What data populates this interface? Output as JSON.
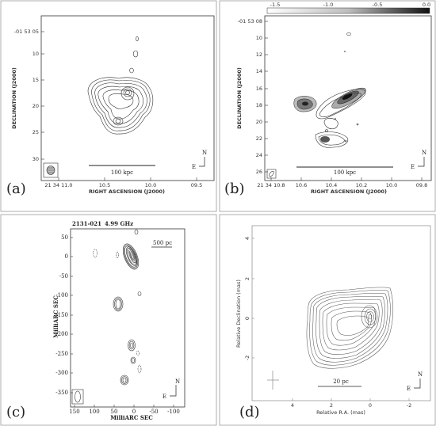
{
  "panels": [
    {
      "id": "a",
      "label": "(a)",
      "ylabel": "DECLINATION (J2000)",
      "xlabel": "RIGHT ASCENSION (J2000)",
      "yticks": [
        "-01 53 05",
        "10",
        "15",
        "20",
        "25",
        "30"
      ],
      "xticks": [
        "21 34 11.0",
        "10.5",
        "10.0",
        "09.5"
      ],
      "scalebar": "100 kpc",
      "compass": {
        "n": "N",
        "e": "E"
      }
    },
    {
      "id": "b",
      "label": "(b)",
      "ylabel": "DECLINATION (J2000)",
      "xlabel": "RIGHT ASCENSION (J2000)",
      "yticks": [
        "-01 53 08",
        "10",
        "12",
        "14",
        "16",
        "18",
        "20",
        "22",
        "24",
        "26"
      ],
      "xticks": [
        "21 34 10.8",
        "10.6",
        "10.4",
        "10.2",
        "10.0",
        "09.8"
      ],
      "colorbar_ticks": [
        "-1.5",
        "-1.0",
        "-0.5",
        "0.0"
      ],
      "scalebar": "100 kpc",
      "compass": {
        "n": "N",
        "e": "E"
      }
    },
    {
      "id": "c",
      "label": "(c)",
      "title_source": "2131-021",
      "title_freq": "4.99 GHz",
      "ylabel": "MilliARC SEC",
      "xlabel": "MilliARC SEC",
      "yticks": [
        "50",
        "0",
        "-50",
        "-100",
        "-150",
        "-200",
        "-250",
        "-300",
        "-350"
      ],
      "xticks": [
        "150",
        "100",
        "50",
        "0",
        "-50",
        "-100"
      ],
      "scalebar": "500 pc",
      "compass": {
        "n": "N",
        "e": "E"
      }
    },
    {
      "id": "d",
      "label": "(d)",
      "ylabel": "Relative Declination (mas)",
      "xlabel": "Relative R.A. (mas)",
      "yticks": [
        "4",
        "2",
        "0",
        "-2"
      ],
      "xticks": [
        "4",
        "2",
        "0",
        "-2"
      ],
      "scalebar": "20 pc",
      "compass": {
        "n": "N",
        "e": "E"
      }
    }
  ],
  "chart_data": [
    {
      "type": "contour",
      "panel": "a",
      "xlim": [
        11.2,
        9.3
      ],
      "ylim": [
        32,
        3
      ]
    },
    {
      "type": "contour",
      "panel": "b",
      "xlim": [
        10.85,
        9.75
      ],
      "ylim": [
        26.5,
        8
      ],
      "colorbar_range": [
        -1.5,
        0.0
      ]
    },
    {
      "type": "contour",
      "panel": "c",
      "xlim": [
        160,
        -140
      ],
      "ylim": [
        -380,
        90
      ]
    },
    {
      "type": "contour",
      "panel": "d",
      "xlim": [
        6,
        -3
      ],
      "ylim": [
        -3.8,
        5.5
      ]
    }
  ]
}
